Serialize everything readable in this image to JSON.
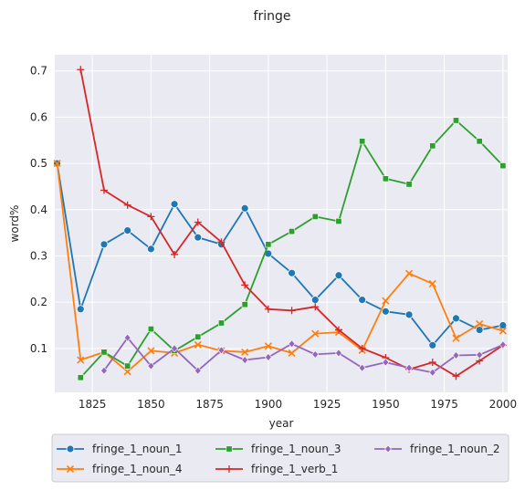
{
  "chart_data": {
    "type": "line",
    "title": "fringe",
    "xlabel": "year",
    "ylabel": "word%",
    "xlim": [
      1809,
      2002
    ],
    "ylim": [
      0.005,
      0.735
    ],
    "xticks": [
      1825,
      1850,
      1875,
      1900,
      1925,
      1950,
      1975,
      2000
    ],
    "yticks": [
      0.1,
      0.2,
      0.3,
      0.4,
      0.5,
      0.6,
      0.7
    ],
    "grid": true,
    "legend_position": "bottom",
    "x": [
      1810,
      1820,
      1830,
      1840,
      1850,
      1860,
      1870,
      1880,
      1890,
      1900,
      1910,
      1920,
      1930,
      1940,
      1950,
      1960,
      1970,
      1980,
      1990,
      2000
    ],
    "series": [
      {
        "name": "fringe_1_noun_1",
        "color": "#1f77b4",
        "marker": "circle",
        "values": [
          0.5,
          0.185,
          0.325,
          0.355,
          0.315,
          0.412,
          0.34,
          0.325,
          0.403,
          0.305,
          0.263,
          0.205,
          0.258,
          0.205,
          0.18,
          0.173,
          0.107,
          0.165,
          0.14,
          0.15
        ]
      },
      {
        "name": "fringe_1_noun_4",
        "color": "#ff7f0e",
        "marker": "x",
        "values": [
          0.5,
          0.075,
          0.092,
          0.05,
          0.095,
          0.09,
          0.108,
          0.095,
          0.092,
          0.105,
          0.09,
          0.132,
          0.135,
          0.096,
          0.203,
          0.262,
          0.24,
          0.122,
          0.153,
          0.138
        ]
      },
      {
        "name": "fringe_1_noun_3",
        "color": "#2ca02c",
        "marker": "square",
        "values": [
          null,
          0.037,
          0.092,
          0.062,
          0.142,
          0.095,
          0.125,
          0.155,
          0.195,
          0.325,
          0.353,
          0.385,
          0.375,
          0.548,
          0.467,
          0.455,
          0.538,
          0.593,
          0.548,
          0.495
        ]
      },
      {
        "name": "fringe_1_verb_1",
        "color": "#d62728",
        "marker": "plus",
        "values": [
          null,
          0.703,
          0.442,
          0.41,
          0.385,
          0.303,
          0.373,
          0.33,
          0.237,
          0.185,
          0.182,
          0.19,
          0.14,
          0.1,
          0.08,
          0.055,
          0.07,
          0.04,
          0.073,
          0.107
        ]
      },
      {
        "name": "fringe_1_noun_2",
        "color": "#9467bd",
        "marker": "diamond",
        "values": [
          null,
          null,
          0.052,
          0.123,
          0.062,
          0.1,
          0.052,
          0.096,
          0.075,
          0.081,
          0.11,
          0.087,
          0.09,
          0.058,
          0.07,
          0.058,
          0.048,
          0.085,
          0.086,
          0.108
        ]
      }
    ]
  }
}
